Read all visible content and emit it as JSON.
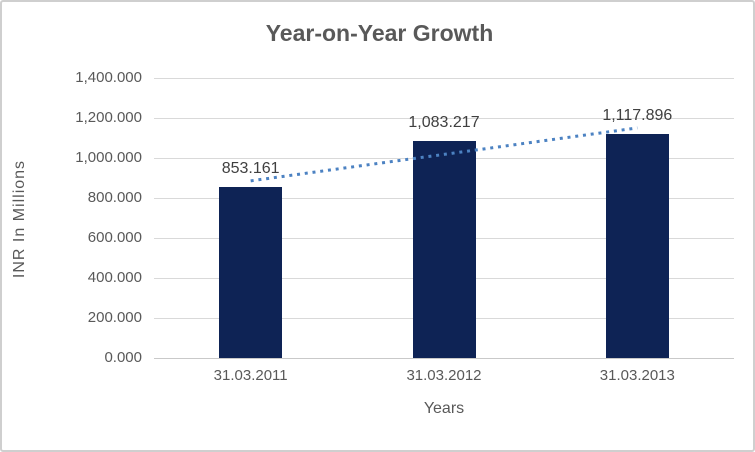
{
  "chart_data": {
    "type": "bar",
    "title": "Year-on-Year Growth",
    "xlabel": "Years",
    "ylabel": "INR In Millions",
    "categories": [
      "31.03.2011",
      "31.03.2012",
      "31.03.2013"
    ],
    "values": [
      853.161,
      1083.217,
      1117.896
    ],
    "data_labels": [
      "853.161",
      "1,083.217",
      "1,117.896"
    ],
    "ylim": [
      0,
      1400
    ],
    "ytick_values": [
      0,
      200,
      400,
      600,
      800,
      1000,
      1200,
      1400
    ],
    "ytick_labels": [
      "0.000",
      "200.000",
      "400.000",
      "600.000",
      "800.000",
      "1,000.000",
      "1,200.000",
      "1,400.000"
    ],
    "grid": true,
    "legend": "none",
    "trendline": {
      "type": "linear",
      "style": "dotted"
    },
    "colors": {
      "bar": "#0e2355",
      "trendline": "#4c82c2",
      "grid": "#d9d9d9",
      "text": "#595959",
      "data_label": "#404040",
      "border": "#cfcfcf",
      "background": "#ffffff"
    }
  }
}
